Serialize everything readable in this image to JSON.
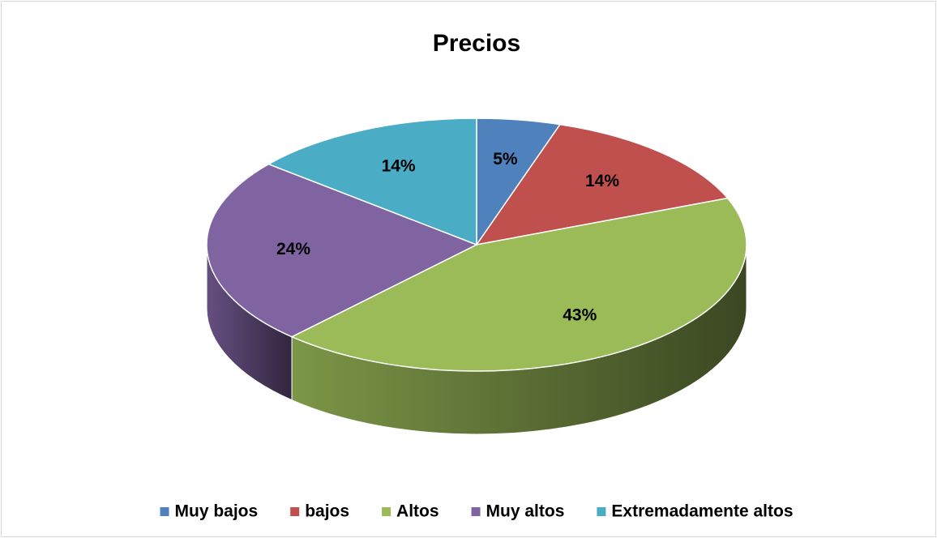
{
  "chart_data": {
    "type": "pie",
    "title": "Precios",
    "categories": [
      "Muy bajos",
      "bajos",
      "Altos",
      "Muy altos",
      "Extremadamente altos"
    ],
    "values": [
      5,
      14,
      43,
      24,
      14
    ],
    "value_labels": [
      "5%",
      "14%",
      "43%",
      "24%",
      "14%"
    ],
    "colors": [
      "#4f81bd",
      "#c0504d",
      "#9bbb59",
      "#8064a2",
      "#4bacc6"
    ],
    "legend": "bottom"
  }
}
